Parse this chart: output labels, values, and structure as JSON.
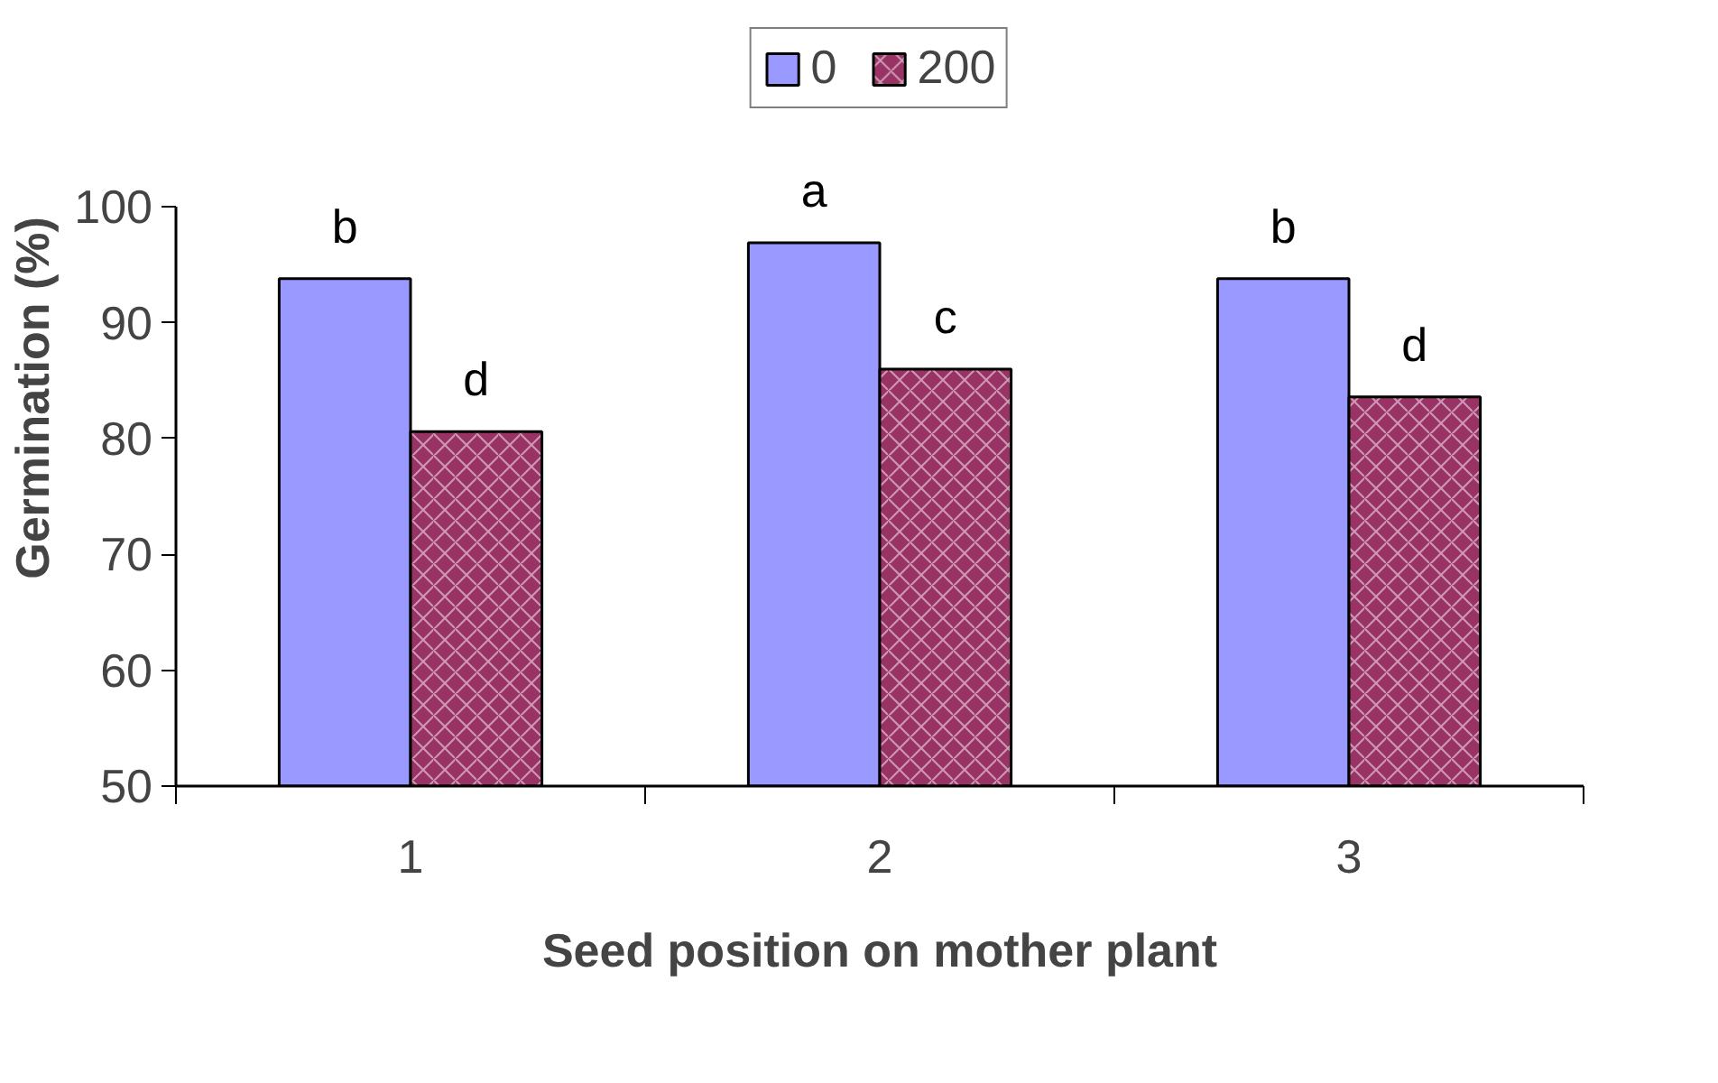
{
  "chart_data": {
    "type": "bar",
    "xlabel": "Seed position on mother plant",
    "ylabel": "Germination (%)",
    "categories": [
      "1",
      "2",
      "3"
    ],
    "series": [
      {
        "name": "0",
        "color": "#9999ff",
        "values": [
          93.8,
          96.9,
          93.8
        ],
        "value_labels": [
          "b",
          "a",
          "b"
        ]
      },
      {
        "name": "200",
        "color": "#993366",
        "values": [
          80.6,
          86.0,
          83.6
        ],
        "value_labels": [
          "d",
          "c",
          "d"
        ]
      }
    ],
    "ylim": [
      50,
      100
    ],
    "yticks": [
      50,
      60,
      70,
      80,
      90,
      100
    ],
    "grid": false,
    "legend": "top"
  }
}
